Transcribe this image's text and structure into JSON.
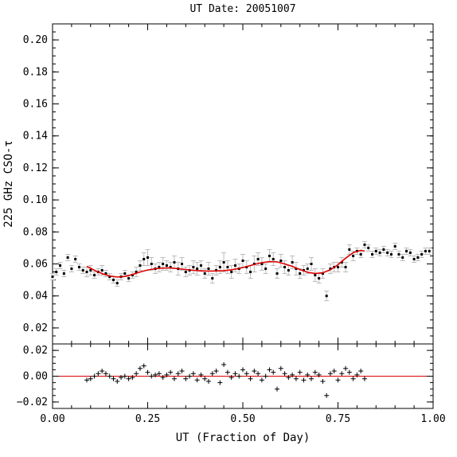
{
  "chart_data": [
    {
      "panel": "main",
      "type": "scatter",
      "title": "UT Date: 20051007",
      "ylabel": "225 GHz CSO-τ",
      "xlim": [
        0,
        1
      ],
      "ylim": [
        0.01,
        0.21
      ],
      "y_tick_values": [
        0.02,
        0.04,
        0.06,
        0.08,
        0.1,
        0.12,
        0.14,
        0.16,
        0.18,
        0.2
      ],
      "y_tick_labels": [
        "0.02",
        "0.04",
        "0.06",
        "0.08",
        "0.10",
        "0.12",
        "0.14",
        "0.16",
        "0.18",
        "0.20"
      ],
      "colors": {
        "points": "#000000",
        "errorbars": "#bbbbbb",
        "fit": "#dd0000"
      },
      "series": [
        {
          "name": "",
          "style": "points-with-errorbars",
          "x": [
            0.0,
            0.01,
            0.02,
            0.03,
            0.04,
            0.05,
            0.06,
            0.07,
            0.08,
            0.09,
            0.1,
            0.11,
            0.12,
            0.13,
            0.14,
            0.15,
            0.16,
            0.17,
            0.18,
            0.19,
            0.2,
            0.21,
            0.22,
            0.23,
            0.24,
            0.25,
            0.26,
            0.27,
            0.28,
            0.29,
            0.3,
            0.31,
            0.32,
            0.33,
            0.34,
            0.35,
            0.36,
            0.37,
            0.38,
            0.39,
            0.4,
            0.41,
            0.42,
            0.43,
            0.44,
            0.45,
            0.46,
            0.47,
            0.48,
            0.49,
            0.5,
            0.51,
            0.52,
            0.53,
            0.54,
            0.55,
            0.56,
            0.57,
            0.58,
            0.59,
            0.6,
            0.61,
            0.62,
            0.63,
            0.64,
            0.65,
            0.66,
            0.67,
            0.68,
            0.69,
            0.7,
            0.71,
            0.72,
            0.73,
            0.74,
            0.75,
            0.76,
            0.77,
            0.78,
            0.79,
            0.8,
            0.81,
            0.82,
            0.83,
            0.84,
            0.85,
            0.86,
            0.87,
            0.88,
            0.89,
            0.9,
            0.91,
            0.92,
            0.93,
            0.94,
            0.95,
            0.96,
            0.97,
            0.98,
            0.99
          ],
          "y": [
            0.052,
            0.055,
            0.059,
            0.054,
            0.064,
            0.057,
            0.063,
            0.058,
            0.056,
            0.055,
            0.056,
            0.053,
            0.055,
            0.056,
            0.054,
            0.052,
            0.05,
            0.048,
            0.052,
            0.054,
            0.051,
            0.053,
            0.055,
            0.059,
            0.063,
            0.064,
            0.06,
            0.057,
            0.058,
            0.06,
            0.059,
            0.058,
            0.061,
            0.057,
            0.06,
            0.055,
            0.056,
            0.058,
            0.057,
            0.059,
            0.054,
            0.057,
            0.051,
            0.056,
            0.058,
            0.061,
            0.058,
            0.055,
            0.059,
            0.057,
            0.062,
            0.058,
            0.055,
            0.06,
            0.063,
            0.06,
            0.057,
            0.065,
            0.063,
            0.054,
            0.062,
            0.058,
            0.056,
            0.061,
            0.057,
            0.054,
            0.056,
            0.057,
            0.06,
            0.053,
            0.051,
            0.054,
            0.04,
            0.057,
            0.058,
            0.058,
            0.061,
            0.058,
            0.069,
            0.065,
            0.068,
            0.066,
            0.072,
            0.07,
            0.066,
            0.068,
            0.067,
            0.069,
            0.067,
            0.066,
            0.071,
            0.066,
            0.064,
            0.068,
            0.067,
            0.063,
            0.064,
            0.066,
            0.068,
            0.068
          ],
          "err": [
            0.002,
            0.002,
            0.002,
            0.002,
            0.002,
            0.002,
            0.002,
            0.002,
            0.002,
            0.003,
            0.003,
            0.002,
            0.002,
            0.003,
            0.002,
            0.002,
            0.002,
            0.002,
            0.002,
            0.002,
            0.002,
            0.002,
            0.003,
            0.003,
            0.004,
            0.005,
            0.004,
            0.003,
            0.003,
            0.004,
            0.003,
            0.003,
            0.004,
            0.004,
            0.004,
            0.003,
            0.003,
            0.004,
            0.004,
            0.003,
            0.003,
            0.004,
            0.003,
            0.003,
            0.004,
            0.006,
            0.004,
            0.004,
            0.004,
            0.003,
            0.004,
            0.004,
            0.004,
            0.005,
            0.004,
            0.004,
            0.003,
            0.004,
            0.004,
            0.003,
            0.004,
            0.004,
            0.003,
            0.004,
            0.004,
            0.003,
            0.003,
            0.003,
            0.004,
            0.004,
            0.003,
            0.003,
            0.003,
            0.003,
            0.003,
            0.003,
            0.003,
            0.003,
            0.003,
            0.003,
            0.002,
            0.002,
            0.002,
            0.002,
            0.002,
            0.002,
            0.002,
            0.002,
            0.002,
            0.002,
            0.002,
            0.002,
            0.002,
            0.002,
            0.002,
            0.002,
            0.002,
            0.002,
            0.002,
            0.002
          ]
        },
        {
          "name": "",
          "style": "fit-curve",
          "x": [
            0.09,
            0.11,
            0.13,
            0.15,
            0.17,
            0.19,
            0.21,
            0.23,
            0.25,
            0.27,
            0.29,
            0.31,
            0.33,
            0.35,
            0.37,
            0.39,
            0.41,
            0.43,
            0.45,
            0.47,
            0.49,
            0.51,
            0.53,
            0.55,
            0.57,
            0.59,
            0.61,
            0.63,
            0.65,
            0.67,
            0.69,
            0.71,
            0.73,
            0.75,
            0.77,
            0.79,
            0.81,
            0.82
          ],
          "y": [
            0.0585,
            0.056,
            0.054,
            0.0525,
            0.0518,
            0.0522,
            0.0534,
            0.055,
            0.0562,
            0.057,
            0.0574,
            0.0575,
            0.057,
            0.0565,
            0.056,
            0.0556,
            0.0555,
            0.0556,
            0.0558,
            0.0563,
            0.0572,
            0.0583,
            0.0597,
            0.0608,
            0.0615,
            0.0613,
            0.06,
            0.0585,
            0.0565,
            0.0548,
            0.054,
            0.0545,
            0.0563,
            0.0595,
            0.0636,
            0.067,
            0.0685,
            0.068
          ]
        }
      ]
    },
    {
      "panel": "residuals",
      "type": "scatter",
      "xlabel": "UT (Fraction of Day)",
      "xlim": [
        0,
        1
      ],
      "ylim": [
        -0.025,
        0.025
      ],
      "x_tick_values": [
        0,
        0.25,
        0.5,
        0.75,
        1.0
      ],
      "x_tick_labels": [
        "0.00",
        "0.25",
        "0.50",
        "0.75",
        "1.00"
      ],
      "y_tick_values": [
        -0.02,
        0.0,
        0.02
      ],
      "y_tick_labels": [
        "−0.02",
        "0.00",
        "0.02"
      ],
      "zero_line": 0.0,
      "colors": {
        "points": "#000000",
        "zero_line": "#dd0000"
      },
      "series": [
        {
          "name": "",
          "style": "plus",
          "x": [
            0.09,
            0.1,
            0.11,
            0.12,
            0.13,
            0.14,
            0.15,
            0.16,
            0.17,
            0.18,
            0.19,
            0.2,
            0.21,
            0.22,
            0.23,
            0.24,
            0.25,
            0.26,
            0.27,
            0.28,
            0.29,
            0.3,
            0.31,
            0.32,
            0.33,
            0.34,
            0.35,
            0.36,
            0.37,
            0.38,
            0.39,
            0.4,
            0.41,
            0.42,
            0.43,
            0.44,
            0.45,
            0.46,
            0.47,
            0.48,
            0.49,
            0.5,
            0.51,
            0.52,
            0.53,
            0.54,
            0.55,
            0.56,
            0.57,
            0.58,
            0.59,
            0.6,
            0.61,
            0.62,
            0.63,
            0.64,
            0.65,
            0.66,
            0.67,
            0.68,
            0.69,
            0.7,
            0.71,
            0.72,
            0.73,
            0.74,
            0.75,
            0.76,
            0.77,
            0.78,
            0.79,
            0.8,
            0.81,
            0.82
          ],
          "y": [
            -0.003,
            -0.002,
            0.0,
            0.002,
            0.004,
            0.002,
            0.0,
            -0.002,
            -0.004,
            -0.001,
            0.0,
            -0.002,
            -0.001,
            0.002,
            0.006,
            0.008,
            0.003,
            0.0,
            0.001,
            0.002,
            -0.001,
            0.001,
            0.003,
            -0.002,
            0.002,
            0.004,
            -0.002,
            0.0,
            0.002,
            -0.003,
            0.001,
            -0.002,
            -0.004,
            0.002,
            0.004,
            -0.005,
            0.009,
            0.003,
            -0.001,
            0.002,
            0.0,
            0.005,
            0.002,
            -0.002,
            0.004,
            0.002,
            -0.003,
            0.0,
            0.005,
            0.003,
            -0.01,
            0.006,
            0.002,
            -0.001,
            0.001,
            -0.002,
            0.003,
            -0.003,
            0.001,
            -0.002,
            0.003,
            0.001,
            -0.004,
            -0.015,
            0.002,
            0.004,
            -0.003,
            0.002,
            0.006,
            0.003,
            -0.002,
            0.001,
            0.004,
            -0.002
          ]
        }
      ]
    }
  ]
}
